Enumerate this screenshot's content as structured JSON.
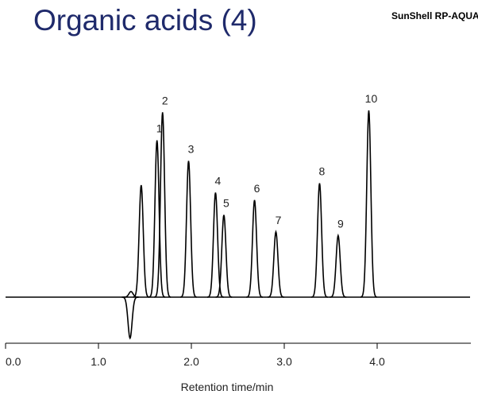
{
  "title": "Organic acids (4)",
  "brand": "SunShell RP-AQUA",
  "chart_data": {
    "type": "chromatogram",
    "color": "#000000",
    "x_label": "Retention time/min",
    "peaks": {
      "x": [
        1.34,
        1.35,
        1.46,
        1.63,
        1.69,
        1.97,
        2.26,
        2.35,
        2.68,
        2.91,
        3.38,
        3.58,
        3.91
      ],
      "values": [
        -22,
        3,
        60,
        84,
        99,
        73,
        56,
        44,
        52,
        35,
        61,
        33,
        100
      ],
      "labels": [
        null,
        null,
        null,
        "1",
        "2",
        "3",
        "4",
        "5",
        "6",
        "7",
        "8",
        "9",
        "10"
      ]
    },
    "xlim": [
      0,
      5
    ],
    "xticks": [
      {
        "value": 0,
        "label": "0.0"
      },
      {
        "value": 1,
        "label": "1.0"
      },
      {
        "value": 2,
        "label": "2.0"
      },
      {
        "value": 3,
        "label": "3.0"
      },
      {
        "value": 4,
        "label": "4.0"
      }
    ],
    "ylim": [
      -24,
      105
    ]
  }
}
